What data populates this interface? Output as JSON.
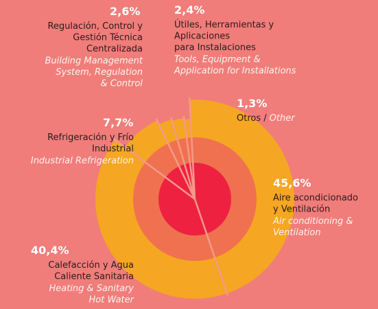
{
  "chart_data": {
    "type": "pie",
    "categories": [
      [
        "Aire acondicionado",
        "y Ventilación"
      ],
      [
        "Calefacción y Agua",
        "Caliente Sanitaria"
      ],
      [
        "Refrigeración y Frío",
        "Industrial"
      ],
      [
        "Regulación, Control y",
        "Gestión Técnica",
        "Centralizada"
      ],
      [
        "Útiles, Herramientas y",
        "Aplicaciones",
        "para Instalaciones"
      ],
      [
        "Otros /"
      ]
    ],
    "categories_en": [
      [
        "Air conditioning &",
        "Ventilation"
      ],
      [
        "Heating & Sanitary",
        "Hot Water"
      ],
      [
        "Industrial Refrigeration"
      ],
      [
        "Building Management",
        "System, Regulation",
        "& Control"
      ],
      [
        "Tools, Equipment &",
        "Application for Installations"
      ],
      [
        "Other"
      ]
    ],
    "values": [
      45.6,
      40.4,
      7.7,
      2.6,
      2.4,
      1.3
    ],
    "value_labels": [
      "45,6%",
      "40,4%",
      "7,7%",
      "2,6%",
      "2,4%",
      "1,3%"
    ],
    "color": "#f5a623"
  }
}
